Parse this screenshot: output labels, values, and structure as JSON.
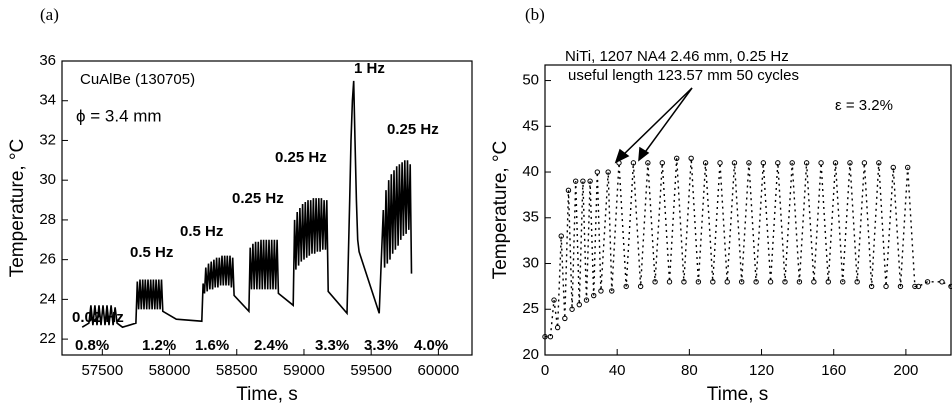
{
  "chart_data": [
    {
      "type": "line",
      "panel_label": "(a)",
      "x_label": "Time, s",
      "y_label": "Temperature, °C",
      "xlim": [
        57200,
        60250
      ],
      "xticks": [
        57500,
        58000,
        58500,
        59000,
        59500,
        60000
      ],
      "ylim": [
        21.2,
        36
      ],
      "yticks": [
        22,
        24,
        26,
        28,
        30,
        32,
        34,
        36
      ],
      "series": [
        {
          "color": "#000000",
          "x": [
            57350,
            57400,
            57415,
            57430,
            57445,
            57460,
            57475,
            57490,
            57505,
            57520,
            57535,
            57550,
            57565,
            57580,
            57595,
            57610,
            57650,
            57750,
            57760,
            57770,
            57780,
            57790,
            57800,
            57810,
            57820,
            57830,
            57840,
            57850,
            57860,
            57870,
            57880,
            57890,
            57900,
            57910,
            57920,
            57930,
            57940,
            57950,
            58050,
            58240,
            58250,
            58260,
            58270,
            58280,
            58290,
            58300,
            58310,
            58320,
            58330,
            58340,
            58350,
            58360,
            58370,
            58380,
            58390,
            58400,
            58410,
            58420,
            58430,
            58440,
            58450,
            58460,
            58470,
            58480,
            58590,
            58600,
            58610,
            58620,
            58630,
            58640,
            58650,
            58660,
            58670,
            58680,
            58690,
            58700,
            58710,
            58720,
            58730,
            58740,
            58750,
            58760,
            58770,
            58780,
            58790,
            58800,
            58810,
            58920,
            58930,
            58940,
            58950,
            58960,
            58970,
            58980,
            58990,
            59000,
            59010,
            59020,
            59030,
            59040,
            59050,
            59060,
            59070,
            59080,
            59090,
            59100,
            59110,
            59120,
            59130,
            59140,
            59150,
            59160,
            59170,
            59180,
            59320,
            59340,
            59350,
            59360,
            59370,
            59380,
            59390,
            59400,
            59410,
            59560,
            59590,
            59600,
            59610,
            59620,
            59630,
            59640,
            59650,
            59660,
            59670,
            59680,
            59690,
            59700,
            59710,
            59720,
            59730,
            59740,
            59750,
            59760,
            59770,
            59780,
            59790,
            59800
          ],
          "values": [
            22.6,
            22.8,
            23.7,
            22.7,
            23.7,
            22.7,
            23.7,
            22.7,
            23.7,
            22.7,
            23.7,
            22.7,
            23.7,
            22.7,
            23.6,
            22.8,
            22.6,
            22.8,
            24.9,
            23.5,
            25,
            23.5,
            25,
            23.5,
            25,
            23.5,
            25,
            23.5,
            25,
            23.5,
            25,
            23.5,
            25,
            23.5,
            25,
            23.5,
            25,
            23.4,
            23.0,
            22.9,
            24.8,
            24.3,
            25.6,
            24.4,
            25.8,
            24.5,
            25.9,
            24.5,
            26,
            24.6,
            26.1,
            24.6,
            26.1,
            24.7,
            26.2,
            24.7,
            26.2,
            24.7,
            26.2,
            24.7,
            26.2,
            24.6,
            26.1,
            24.2,
            23.4,
            26.6,
            24.5,
            26.8,
            24.5,
            26.9,
            24.5,
            26.9,
            24.5,
            27,
            24.5,
            27,
            24.5,
            27,
            24.5,
            27,
            24.5,
            27,
            24.5,
            27,
            24.5,
            27,
            24.3,
            23.7,
            28,
            25.5,
            28.4,
            25.7,
            28.6,
            25.9,
            28.8,
            26,
            28.9,
            26.1,
            29,
            26.2,
            29,
            26.3,
            29.1,
            26.3,
            29.1,
            26.4,
            29.1,
            26.4,
            29.1,
            26.5,
            29,
            26.5,
            29,
            24.4,
            23.3,
            29,
            32,
            34,
            35,
            32,
            29,
            27,
            26.4,
            23.3,
            28.5,
            25.6,
            29.5,
            25.8,
            30,
            26,
            30.3,
            26.3,
            30.5,
            26.5,
            30.7,
            26.7,
            30.8,
            27,
            30.9,
            27.2,
            31,
            27.3,
            31,
            27.5,
            30.8,
            25.3
          ]
        }
      ],
      "annotations": [
        "0.02 Hz",
        "0.5 Hz",
        "0.5 Hz",
        "0.25 Hz",
        "0.25 Hz",
        "1 Hz",
        "0.25 Hz",
        "0.8%",
        "1.2%",
        "1.6%",
        "2.4%",
        "3.3%",
        "3.3%",
        "4.0%",
        "CuAlBe (130705)",
        "ϕ = 3.4 mm"
      ]
    },
    {
      "type": "scatter",
      "panel_label": "(b)",
      "x_label": "Time, s",
      "y_label": "Temperature, °C",
      "xlim": [
        0,
        225
      ],
      "xticks": [
        0,
        40,
        80,
        120,
        160,
        200
      ],
      "ylim": [
        20,
        51.7
      ],
      "yticks": [
        20,
        25,
        30,
        35,
        40,
        45,
        50
      ],
      "series": [
        {
          "color": "#000000",
          "x": [
            0,
            3,
            5,
            7,
            9,
            11,
            13,
            15,
            17,
            19,
            21,
            23,
            25,
            27,
            29,
            31,
            35,
            37,
            41,
            45,
            49,
            53,
            57,
            61,
            65,
            69,
            73,
            77,
            81,
            85,
            89,
            93,
            97,
            101,
            105,
            109,
            113,
            117,
            121,
            125,
            129,
            133,
            137,
            141,
            145,
            149,
            153,
            157,
            161,
            165,
            169,
            173,
            177,
            181,
            185,
            189,
            193,
            197,
            201,
            205,
            207,
            212,
            220,
            225
          ],
          "values": [
            22,
            22,
            26,
            23,
            33,
            24,
            38,
            25,
            39,
            25.5,
            39,
            26,
            39,
            26.5,
            40,
            27,
            40,
            27,
            41,
            27.5,
            41,
            27.5,
            41,
            28,
            41,
            28,
            41.5,
            28,
            41.5,
            28,
            41,
            28,
            41,
            28,
            41,
            28,
            41,
            28,
            41,
            28,
            41,
            28,
            41,
            28,
            41,
            28,
            41,
            28,
            41,
            28,
            41,
            28,
            41,
            27.5,
            41,
            27.5,
            40.5,
            27.5,
            40.5,
            27.5,
            27.5,
            28,
            28,
            27.5
          ]
        }
      ],
      "annotations": [
        "NiTi, 1207 NA4 2.46 mm, 0.25 Hz",
        "useful  length 123.57 mm 50 cycles",
        "ε = 3.2%"
      ]
    }
  ]
}
